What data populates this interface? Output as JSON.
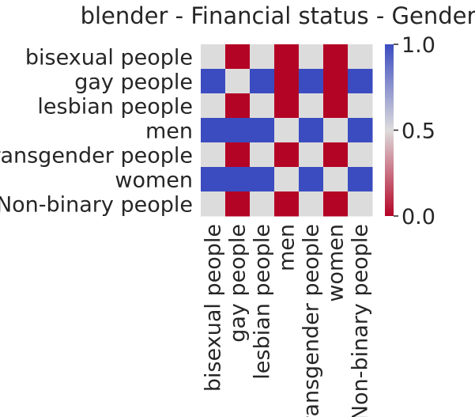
{
  "chart_data": {
    "type": "heatmap",
    "title": "blender - Financial status - Gender",
    "xlabel": "",
    "ylabel": "",
    "row_labels": [
      "bisexual people",
      "gay people",
      "lesbian people",
      "men",
      "transgender people",
      "women",
      "Non-binary people"
    ],
    "col_labels": [
      "bisexual people",
      "gay people",
      "lesbian people",
      "men",
      "transgender people",
      "women",
      "Non-binary people"
    ],
    "values": [
      [
        0.5,
        0.0,
        0.5,
        0.0,
        0.5,
        0.0,
        0.5
      ],
      [
        1.0,
        0.5,
        1.0,
        0.0,
        1.0,
        0.0,
        1.0
      ],
      [
        0.5,
        0.0,
        0.5,
        0.0,
        0.5,
        0.0,
        0.5
      ],
      [
        1.0,
        1.0,
        1.0,
        0.5,
        1.0,
        0.5,
        1.0
      ],
      [
        0.5,
        0.0,
        0.5,
        0.0,
        0.5,
        0.0,
        0.5
      ],
      [
        1.0,
        1.0,
        1.0,
        0.5,
        1.0,
        0.5,
        1.0
      ],
      [
        0.5,
        0.0,
        0.5,
        0.0,
        0.5,
        0.0,
        0.5
      ]
    ],
    "colormap": "coolwarm_r",
    "vmin": 0.0,
    "vmax": 1.0,
    "colorbar_ticks": [
      "0.0",
      "0.5",
      "1.0"
    ],
    "colors": {
      "low": "#b40426",
      "mid": "#dddcdc",
      "high": "#3b4cc0"
    }
  }
}
